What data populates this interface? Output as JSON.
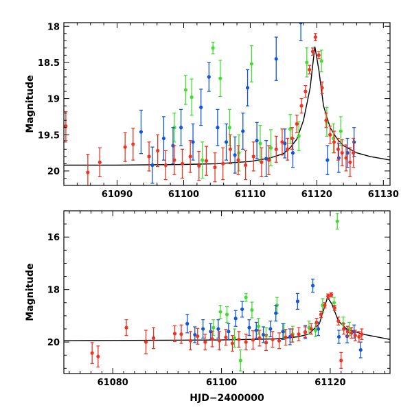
{
  "chart_data": [
    {
      "type": "scatter",
      "panel": "top",
      "xlabel": "",
      "ylabel": "Magnitude",
      "xlim": [
        61082,
        61131
      ],
      "ylim": [
        20.2,
        17.95
      ],
      "y_inverted": true,
      "xticks": [
        61090,
        61100,
        61110,
        61120,
        61130
      ],
      "xtick_labels": [
        "61090",
        "61100",
        "61110",
        "61120",
        "61130"
      ],
      "yticks": [
        18,
        18.5,
        19,
        19.5,
        20
      ],
      "ytick_labels": [
        "18",
        "18.5",
        "19",
        "19.5",
        "20"
      ],
      "model_curve": {
        "name": "model",
        "color": "#000000",
        "x": [
          61082,
          61090,
          61100,
          61105,
          61110,
          61113,
          61115,
          61116,
          61117,
          61118,
          61119,
          61119.7,
          61120.3,
          61121,
          61122,
          61123,
          61124,
          61126,
          61128,
          61131
        ],
        "y": [
          19.92,
          19.92,
          19.91,
          19.9,
          19.87,
          19.82,
          19.76,
          19.68,
          19.56,
          19.3,
          18.85,
          18.28,
          18.6,
          19.1,
          19.4,
          19.55,
          19.65,
          19.75,
          19.8,
          19.85
        ]
      },
      "series": [
        {
          "name": "red",
          "color": "#ee3322",
          "points": [
            [
              61082.3,
              19.38,
              0.2
            ],
            [
              61085.6,
              20.02,
              0.25
            ],
            [
              61087.4,
              19.88,
              0.2
            ],
            [
              61091.2,
              19.67,
              0.2
            ],
            [
              61092.4,
              19.63,
              0.22
            ],
            [
              61094.8,
              19.8,
              0.2
            ],
            [
              61096.1,
              19.72,
              0.22
            ],
            [
              61097.3,
              19.92,
              0.2
            ],
            [
              61098.6,
              19.85,
              0.2
            ],
            [
              61099.8,
              19.9,
              0.2
            ],
            [
              61101.0,
              19.8,
              0.22
            ],
            [
              61102.3,
              19.93,
              0.2
            ],
            [
              61103.4,
              19.86,
              0.2
            ],
            [
              61104.7,
              19.95,
              0.2
            ],
            [
              61105.9,
              19.9,
              0.22
            ],
            [
              61107.0,
              19.7,
              0.2
            ],
            [
              61108.2,
              19.85,
              0.2
            ],
            [
              61109.3,
              19.92,
              0.2
            ],
            [
              61110.5,
              19.8,
              0.2
            ],
            [
              61111.7,
              19.88,
              0.2
            ],
            [
              61112.8,
              19.85,
              0.2
            ],
            [
              61113.9,
              19.7,
              0.18
            ],
            [
              61114.8,
              19.6,
              0.18
            ],
            [
              61115.6,
              19.7,
              0.15
            ],
            [
              61116.3,
              19.55,
              0.15
            ],
            [
              61117.0,
              19.35,
              0.12
            ],
            [
              61117.7,
              19.1,
              0.1
            ],
            [
              61118.3,
              18.9,
              0.08
            ],
            [
              61118.9,
              18.6,
              0.06
            ],
            [
              61119.4,
              18.35,
              0.05
            ],
            [
              61119.8,
              18.15,
              0.05
            ],
            [
              61120.3,
              18.4,
              0.05
            ],
            [
              61120.8,
              18.85,
              0.08
            ],
            [
              61121.4,
              19.3,
              0.1
            ],
            [
              61122.0,
              19.5,
              0.12
            ],
            [
              61122.6,
              19.6,
              0.15
            ],
            [
              61123.2,
              19.7,
              0.15
            ],
            [
              61123.8,
              19.75,
              0.18
            ],
            [
              61124.4,
              19.82,
              0.18
            ],
            [
              61125.0,
              19.88,
              0.2
            ],
            [
              61125.5,
              19.75,
              0.2
            ]
          ]
        },
        {
          "name": "blue",
          "color": "#1155dd",
          "points": [
            [
              61093.6,
              19.46,
              0.3
            ],
            [
              61095.3,
              19.92,
              0.25
            ],
            [
              61097.0,
              19.55,
              0.3
            ],
            [
              61098.4,
              19.65,
              0.25
            ],
            [
              61099.6,
              19.4,
              0.25
            ],
            [
              61101.4,
              19.6,
              0.25
            ],
            [
              61102.6,
              19.12,
              0.25
            ],
            [
              61103.8,
              18.7,
              0.2
            ],
            [
              61105.1,
              19.4,
              0.25
            ],
            [
              61106.4,
              19.6,
              0.25
            ],
            [
              61107.7,
              19.78,
              0.25
            ],
            [
              61108.9,
              19.45,
              0.25
            ],
            [
              61109.6,
              18.85,
              0.25
            ],
            [
              61111.0,
              19.58,
              0.25
            ],
            [
              61112.4,
              19.83,
              0.25
            ],
            [
              61113.9,
              18.45,
              0.3
            ],
            [
              61115.2,
              19.62,
              0.2
            ],
            [
              61116.4,
              19.75,
              0.2
            ],
            [
              61117.6,
              17.95,
              0.25
            ],
            [
              61121.6,
              19.85,
              0.2
            ],
            [
              61123.3,
              19.82,
              0.2
            ],
            [
              61124.6,
              19.75,
              0.2
            ],
            [
              61125.6,
              19.6,
              0.2
            ]
          ]
        },
        {
          "name": "green",
          "color": "#44dd33",
          "points": [
            [
              61098.6,
              19.4,
              0.2
            ],
            [
              61100.3,
              18.88,
              0.2
            ],
            [
              61101.2,
              18.98,
              0.25
            ],
            [
              61102.8,
              19.85,
              0.25
            ],
            [
              61104.4,
              18.3,
              0.08
            ],
            [
              61105.5,
              18.72,
              0.25
            ],
            [
              61106.9,
              19.4,
              0.25
            ],
            [
              61108.3,
              19.75,
              0.25
            ],
            [
              61110.2,
              18.52,
              0.25
            ],
            [
              61111.5,
              19.62,
              0.25
            ],
            [
              61113.1,
              19.68,
              0.25
            ],
            [
              61116.0,
              19.42,
              0.2
            ],
            [
              61117.3,
              19.52,
              0.2
            ],
            [
              61118.5,
              18.5,
              0.2
            ],
            [
              61120.7,
              18.48,
              0.15
            ],
            [
              61121.5,
              19.32,
              0.2
            ],
            [
              61122.5,
              19.55,
              0.2
            ],
            [
              61123.6,
              19.45,
              0.2
            ]
          ]
        }
      ]
    },
    {
      "type": "scatter",
      "panel": "bottom",
      "xlabel": "HJD−2400000",
      "ylabel": "Magnitude",
      "xlim": [
        61071,
        61131
      ],
      "ylim": [
        21.2,
        15.0
      ],
      "y_inverted": true,
      "xticks": [
        61080,
        61100,
        61120
      ],
      "xtick_labels": [
        "61080",
        "61100",
        "61120"
      ],
      "yticks": [
        16,
        18,
        20
      ],
      "ytick_labels": [
        "16",
        "18",
        "20"
      ],
      "model_curve": {
        "name": "model",
        "color": "#000000",
        "x": [
          61071,
          61080,
          61090,
          61100,
          61110,
          61114,
          61116,
          61118,
          61119.5,
          61120.3,
          61121.5,
          61123,
          61126,
          61131
        ],
        "y": [
          19.95,
          19.94,
          19.93,
          19.92,
          19.88,
          19.8,
          19.7,
          19.3,
          18.3,
          18.55,
          19.2,
          19.5,
          19.7,
          19.9
        ]
      },
      "series": [
        {
          "name": "red",
          "color": "#ee3322",
          "points": [
            [
              61076.2,
              20.42,
              0.4
            ],
            [
              61077.3,
              20.55,
              0.4
            ],
            [
              61082.5,
              19.45,
              0.3
            ],
            [
              61086.1,
              20.0,
              0.45
            ],
            [
              61087.5,
              19.85,
              0.4
            ],
            [
              61091.4,
              19.68,
              0.3
            ],
            [
              61092.6,
              19.7,
              0.35
            ],
            [
              61094.3,
              19.95,
              0.35
            ],
            [
              61095.6,
              19.78,
              0.3
            ],
            [
              61097.0,
              20.0,
              0.3
            ],
            [
              61098.3,
              19.88,
              0.3
            ],
            [
              61099.6,
              19.95,
              0.35
            ],
            [
              61100.8,
              19.82,
              0.3
            ],
            [
              61102.0,
              20.05,
              0.3
            ],
            [
              61103.2,
              19.9,
              0.3
            ],
            [
              61104.5,
              20.0,
              0.3
            ],
            [
              61105.8,
              19.92,
              0.35
            ],
            [
              61107.0,
              19.85,
              0.3
            ],
            [
              61108.2,
              20.02,
              0.3
            ],
            [
              61109.4,
              19.9,
              0.3
            ],
            [
              61110.6,
              19.95,
              0.3
            ],
            [
              61111.8,
              19.82,
              0.3
            ],
            [
              61113.0,
              19.75,
              0.25
            ],
            [
              61114.2,
              19.7,
              0.25
            ],
            [
              61115.4,
              19.62,
              0.2
            ],
            [
              61116.5,
              19.5,
              0.2
            ],
            [
              61117.5,
              19.25,
              0.15
            ],
            [
              61118.3,
              18.95,
              0.12
            ],
            [
              61119.0,
              18.6,
              0.1
            ],
            [
              61119.6,
              18.25,
              0.08
            ],
            [
              61120.2,
              18.2,
              0.08
            ],
            [
              61120.8,
              18.7,
              0.1
            ],
            [
              61121.5,
              19.2,
              0.15
            ],
            [
              61122.0,
              20.7,
              0.3
            ],
            [
              61122.5,
              19.5,
              0.2
            ],
            [
              61123.2,
              19.6,
              0.2
            ],
            [
              61123.9,
              19.65,
              0.2
            ],
            [
              61124.6,
              19.75,
              0.2
            ],
            [
              61125.3,
              19.8,
              0.2
            ],
            [
              61125.8,
              19.7,
              0.2
            ]
          ]
        },
        {
          "name": "blue",
          "color": "#1155dd",
          "points": [
            [
              61093.7,
              19.3,
              0.35
            ],
            [
              61095.1,
              19.72,
              0.3
            ],
            [
              61096.6,
              19.5,
              0.35
            ],
            [
              61098.0,
              19.6,
              0.3
            ],
            [
              61099.4,
              19.5,
              0.35
            ],
            [
              61101.3,
              19.6,
              0.3
            ],
            [
              61102.6,
              19.1,
              0.3
            ],
            [
              61103.8,
              18.75,
              0.3
            ],
            [
              61105.1,
              19.45,
              0.3
            ],
            [
              61106.4,
              19.55,
              0.3
            ],
            [
              61107.7,
              19.72,
              0.3
            ],
            [
              61109.0,
              19.5,
              0.3
            ],
            [
              61110.0,
              18.9,
              0.3
            ],
            [
              61111.3,
              19.6,
              0.3
            ],
            [
              61112.6,
              19.8,
              0.3
            ],
            [
              61114.0,
              18.45,
              0.3
            ],
            [
              61115.4,
              19.62,
              0.25
            ],
            [
              61116.8,
              17.85,
              0.25
            ],
            [
              61117.8,
              19.5,
              0.25
            ],
            [
              61121.6,
              19.8,
              0.25
            ],
            [
              61123.1,
              19.78,
              0.25
            ],
            [
              61124.4,
              19.6,
              0.25
            ],
            [
              61125.6,
              20.3,
              0.3
            ]
          ]
        },
        {
          "name": "green",
          "color": "#44dd33",
          "points": [
            [
              61098.5,
              19.45,
              0.3
            ],
            [
              61099.8,
              18.85,
              0.25
            ],
            [
              61101.0,
              18.95,
              0.3
            ],
            [
              61102.4,
              19.85,
              0.35
            ],
            [
              61103.5,
              20.7,
              0.4
            ],
            [
              61104.5,
              18.3,
              0.15
            ],
            [
              61105.6,
              18.78,
              0.3
            ],
            [
              61106.8,
              19.4,
              0.3
            ],
            [
              61108.2,
              19.75,
              0.3
            ],
            [
              61110.2,
              18.6,
              0.3
            ],
            [
              61111.5,
              19.6,
              0.3
            ],
            [
              61113.1,
              19.7,
              0.3
            ],
            [
              61116.1,
              19.45,
              0.25
            ],
            [
              61117.3,
              19.55,
              0.25
            ],
            [
              61118.6,
              18.6,
              0.25
            ],
            [
              61120.7,
              18.5,
              0.2
            ],
            [
              61121.3,
              15.4,
              0.3
            ],
            [
              61122.4,
              19.3,
              0.25
            ],
            [
              61123.5,
              19.5,
              0.25
            ]
          ]
        }
      ]
    }
  ]
}
